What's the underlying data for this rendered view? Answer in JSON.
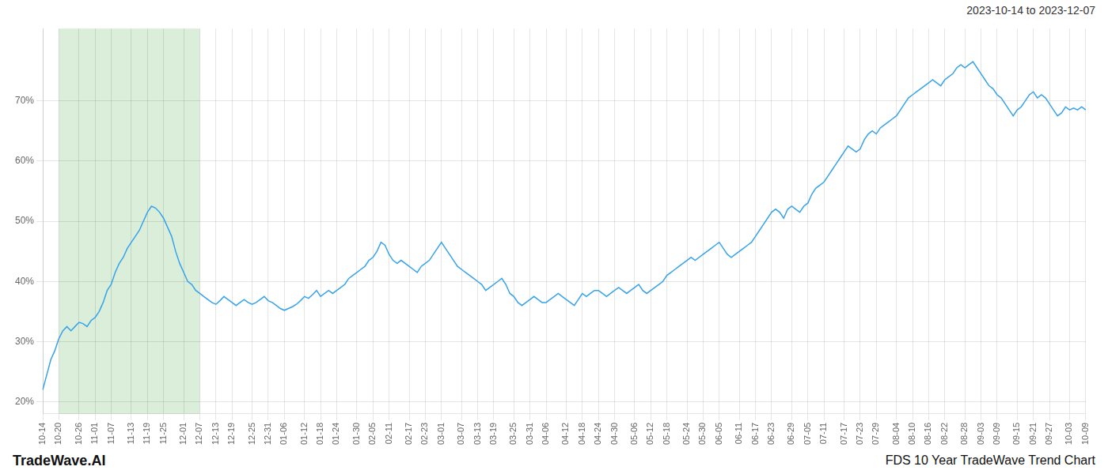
{
  "chart_data": {
    "type": "line",
    "title": "FDS 10 Year TradeWave Trend Chart",
    "subtitle": "2023-10-14 to 2023-12-07",
    "annotations": [
      "TradeWave.AI"
    ],
    "categories": [
      "10-14",
      null,
      null,
      null,
      "10-20",
      null,
      null,
      null,
      null,
      "10-26",
      null,
      null,
      null,
      "11-01",
      null,
      null,
      null,
      "11-07",
      null,
      null,
      null,
      null,
      "11-13",
      null,
      null,
      null,
      "11-19",
      null,
      null,
      null,
      "11-25",
      null,
      null,
      null,
      null,
      "12-01",
      null,
      null,
      null,
      "12-07",
      null,
      null,
      null,
      "12-13",
      null,
      null,
      null,
      "12-19",
      null,
      null,
      null,
      null,
      "12-25",
      null,
      null,
      null,
      "12-31",
      null,
      null,
      null,
      "01-06",
      null,
      null,
      null,
      null,
      "01-12",
      null,
      null,
      null,
      "01-18",
      null,
      null,
      null,
      "01-24",
      null,
      null,
      null,
      null,
      "01-30",
      null,
      null,
      null,
      "02-05",
      null,
      null,
      null,
      "02-11",
      null,
      null,
      null,
      null,
      "02-17",
      null,
      null,
      null,
      "02-23",
      null,
      null,
      null,
      "03-01",
      null,
      null,
      null,
      null,
      "03-07",
      null,
      null,
      null,
      "03-13",
      null,
      null,
      null,
      "03-19",
      null,
      null,
      null,
      null,
      "03-25",
      null,
      null,
      null,
      "03-31",
      null,
      null,
      null,
      "04-06",
      null,
      null,
      null,
      null,
      "04-12",
      null,
      null,
      null,
      "04-18",
      null,
      null,
      null,
      "04-24",
      null,
      null,
      null,
      "04-30",
      null,
      null,
      null,
      null,
      "05-06",
      null,
      null,
      null,
      "05-12",
      null,
      null,
      null,
      "05-18",
      null,
      null,
      null,
      null,
      "05-24",
      null,
      null,
      null,
      "05-30",
      null,
      null,
      null,
      "06-05",
      null,
      null,
      null,
      null,
      "06-11",
      null,
      null,
      null,
      "06-17",
      null,
      null,
      null,
      "06-23",
      null,
      null,
      null,
      null,
      "06-29",
      null,
      null,
      null,
      "07-05",
      null,
      null,
      null,
      "07-11",
      null,
      null,
      null,
      null,
      "07-17",
      null,
      null,
      null,
      "07-23",
      null,
      null,
      null,
      "07-29",
      null,
      null,
      null,
      null,
      "08-04",
      null,
      null,
      null,
      "08-10",
      null,
      null,
      null,
      "08-16",
      null,
      null,
      null,
      "08-22",
      null,
      null,
      null,
      null,
      "08-28",
      null,
      null,
      null,
      "09-03",
      null,
      null,
      null,
      "09-09",
      null,
      null,
      null,
      null,
      "09-15",
      null,
      null,
      null,
      "09-21",
      null,
      null,
      null,
      "09-27",
      null,
      null,
      null,
      null,
      "10-03",
      null,
      null,
      null,
      "10-09"
    ],
    "values": [
      22.0,
      24.5,
      27.0,
      28.5,
      30.5,
      31.8,
      32.5,
      31.8,
      32.5,
      33.2,
      33.0,
      32.5,
      33.5,
      34.0,
      35.0,
      36.5,
      38.5,
      39.5,
      41.5,
      43.0,
      44.0,
      45.5,
      46.5,
      47.5,
      48.5,
      50.0,
      51.5,
      52.5,
      52.2,
      51.5,
      50.5,
      49.0,
      47.5,
      45.0,
      43.0,
      41.5,
      40.0,
      39.5,
      38.5,
      38.0,
      37.5,
      37.0,
      36.5,
      36.2,
      36.8,
      37.5,
      37.0,
      36.5,
      36.0,
      36.5,
      37.0,
      36.5,
      36.2,
      36.5,
      37.0,
      37.5,
      36.8,
      36.5,
      36.0,
      35.5,
      35.2,
      35.5,
      35.8,
      36.2,
      36.8,
      37.5,
      37.2,
      37.8,
      38.5,
      37.5,
      38.0,
      38.5,
      38.0,
      38.5,
      39.0,
      39.5,
      40.5,
      41.0,
      41.5,
      42.0,
      42.5,
      43.5,
      44.0,
      45.0,
      46.5,
      46.0,
      44.5,
      43.5,
      43.0,
      43.5,
      43.0,
      42.5,
      42.0,
      41.5,
      42.5,
      43.0,
      43.5,
      44.5,
      45.5,
      46.5,
      45.5,
      44.5,
      43.5,
      42.5,
      42.0,
      41.5,
      41.0,
      40.5,
      40.0,
      39.5,
      38.5,
      39.0,
      39.5,
      40.0,
      40.5,
      39.5,
      38.0,
      37.5,
      36.5,
      36.0,
      36.5,
      37.0,
      37.5,
      37.0,
      36.5,
      36.5,
      37.0,
      37.5,
      38.0,
      37.5,
      37.0,
      36.5,
      36.0,
      37.0,
      38.0,
      37.5,
      38.0,
      38.5,
      38.5,
      38.0,
      37.5,
      38.0,
      38.5,
      39.0,
      38.5,
      38.0,
      38.5,
      39.0,
      39.5,
      38.5,
      38.0,
      38.5,
      39.0,
      39.5,
      40.0,
      41.0,
      41.5,
      42.0,
      42.5,
      43.0,
      43.5,
      44.0,
      43.5,
      44.0,
      44.5,
      45.0,
      45.5,
      46.0,
      46.5,
      45.5,
      44.5,
      44.0,
      44.5,
      45.0,
      45.5,
      46.0,
      46.5,
      47.5,
      48.5,
      49.5,
      50.5,
      51.5,
      52.0,
      51.5,
      50.5,
      52.0,
      52.5,
      52.0,
      51.5,
      52.5,
      53.0,
      54.5,
      55.5,
      56.0,
      56.5,
      57.5,
      58.5,
      59.5,
      60.5,
      61.5,
      62.5,
      62.0,
      61.5,
      62.0,
      63.5,
      64.5,
      65.0,
      64.5,
      65.5,
      66.0,
      66.5,
      67.0,
      67.5,
      68.5,
      69.5,
      70.5,
      71.0,
      71.5,
      72.0,
      72.5,
      73.0,
      73.5,
      73.0,
      72.5,
      73.5,
      74.0,
      74.5,
      75.5,
      76.0,
      75.5,
      76.0,
      76.5,
      75.5,
      74.5,
      73.5,
      72.5,
      72.0,
      71.0,
      70.5,
      69.5,
      68.5,
      67.5,
      68.5,
      69.0,
      70.0,
      71.0,
      71.5,
      70.5,
      71.0,
      70.5,
      69.5,
      68.5,
      67.5,
      68.0,
      69.0,
      68.5,
      68.8,
      68.5,
      69.0,
      68.5
    ],
    "ylim": [
      18,
      82
    ],
    "yticks": [
      {
        "value": 20,
        "label": "20%"
      },
      {
        "value": 30,
        "label": "30%"
      },
      {
        "value": 40,
        "label": "40%"
      },
      {
        "value": 50,
        "label": "50%"
      },
      {
        "value": 60,
        "label": "60%"
      },
      {
        "value": 70,
        "label": "70%"
      }
    ],
    "grid": true,
    "spans": [
      {
        "from": "10-20",
        "to": "12-07",
        "color": "#daeeda"
      }
    ]
  }
}
